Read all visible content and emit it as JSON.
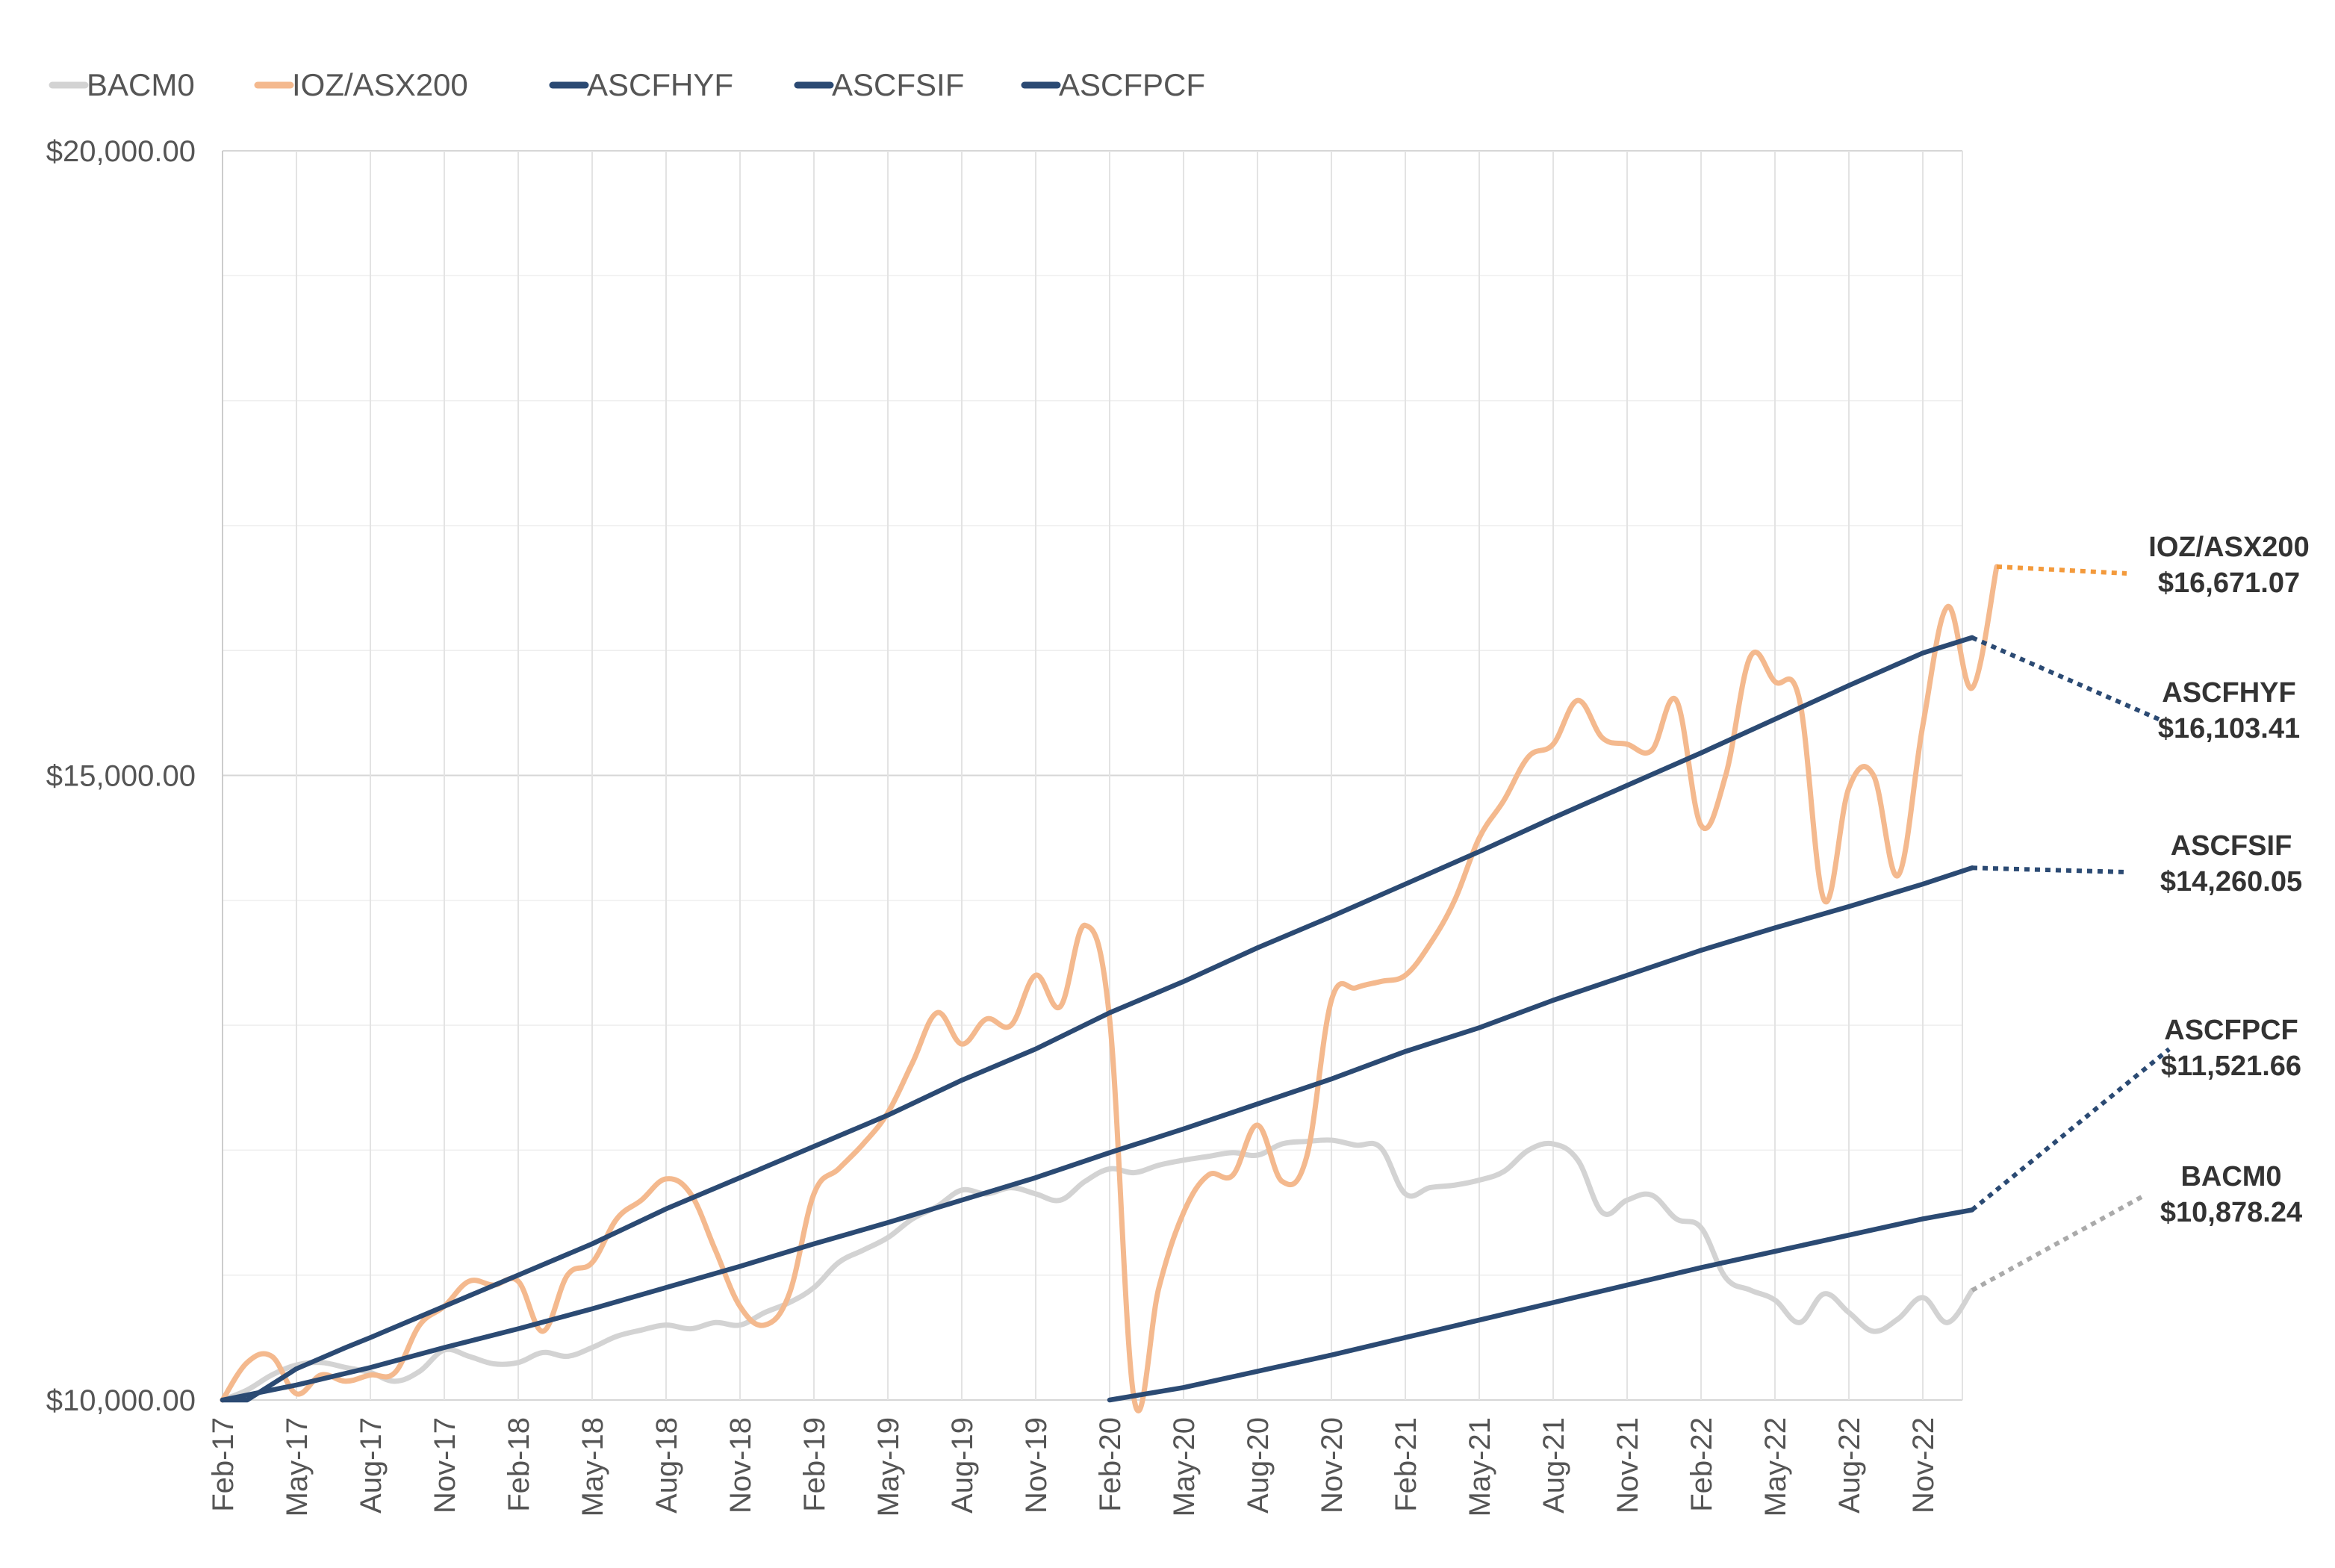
{
  "chart_data": {
    "type": "line",
    "title": "",
    "xlabel": "",
    "ylabel": "",
    "ylim": [
      10000,
      20000
    ],
    "yticks": [
      "$10,000.00",
      "$15,000.00",
      "$20,000.00"
    ],
    "ytick_values": [
      10000,
      15000,
      20000
    ],
    "grid": true,
    "legend_position": "top-left",
    "x_tick_labels": [
      "Feb-17",
      "May-17",
      "Aug-17",
      "Nov-17",
      "Feb-18",
      "May-18",
      "Aug-18",
      "Nov-18",
      "Feb-19",
      "May-19",
      "Aug-19",
      "Nov-19",
      "Feb-20",
      "May-20",
      "Aug-20",
      "Nov-20",
      "Feb-21",
      "May-21",
      "Aug-21",
      "Nov-21",
      "Feb-22",
      "May-22",
      "Aug-22",
      "Nov-22"
    ],
    "series": [
      {
        "name": "BACM0",
        "color": "#d3d3d3",
        "end_label": "BACM0",
        "end_value": "$10,878.24",
        "end_color": "#aaaaaa",
        "points": [
          [
            "Feb-17",
            10000
          ],
          [
            "Mar-17",
            10080
          ],
          [
            "Apr-17",
            10200
          ],
          [
            "May-17",
            10280
          ],
          [
            "Jun-17",
            10300
          ],
          [
            "Jul-17",
            10260
          ],
          [
            "Aug-17",
            10220
          ],
          [
            "Sep-17",
            10150
          ],
          [
            "Oct-17",
            10230
          ],
          [
            "Nov-17",
            10400
          ],
          [
            "Dec-17",
            10350
          ],
          [
            "Jan-18",
            10290
          ],
          [
            "Feb-18",
            10300
          ],
          [
            "Mar-18",
            10380
          ],
          [
            "Apr-18",
            10350
          ],
          [
            "May-18",
            10420
          ],
          [
            "Jun-18",
            10510
          ],
          [
            "Jul-18",
            10560
          ],
          [
            "Aug-18",
            10600
          ],
          [
            "Sep-18",
            10570
          ],
          [
            "Oct-18",
            10620
          ],
          [
            "Nov-18",
            10600
          ],
          [
            "Dec-18",
            10700
          ],
          [
            "Jan-19",
            10780
          ],
          [
            "Feb-19",
            10900
          ],
          [
            "Mar-19",
            11100
          ],
          [
            "Apr-19",
            11200
          ],
          [
            "May-19",
            11300
          ],
          [
            "Jun-19",
            11450
          ],
          [
            "Jul-19",
            11550
          ],
          [
            "Aug-19",
            11680
          ],
          [
            "Sep-19",
            11650
          ],
          [
            "Oct-19",
            11700
          ],
          [
            "Nov-19",
            11650
          ],
          [
            "Dec-19",
            11600
          ],
          [
            "Jan-20",
            11750
          ],
          [
            "Feb-20",
            11850
          ],
          [
            "Mar-20",
            11820
          ],
          [
            "Apr-20",
            11880
          ],
          [
            "May-20",
            11920
          ],
          [
            "Jun-20",
            11950
          ],
          [
            "Jul-20",
            11980
          ],
          [
            "Aug-20",
            11960
          ],
          [
            "Sep-20",
            12050
          ],
          [
            "Oct-20",
            12070
          ],
          [
            "Nov-20",
            12080
          ],
          [
            "Dec-20",
            12040
          ],
          [
            "Jan-21",
            12020
          ],
          [
            "Feb-21",
            11650
          ],
          [
            "Mar-21",
            11700
          ],
          [
            "Apr-21",
            11720
          ],
          [
            "May-21",
            11760
          ],
          [
            "Jun-21",
            11830
          ],
          [
            "Jul-21",
            12000
          ],
          [
            "Aug-21",
            12050
          ],
          [
            "Sep-21",
            11920
          ],
          [
            "Oct-21",
            11500
          ],
          [
            "Nov-21",
            11600
          ],
          [
            "Dec-21",
            11640
          ],
          [
            "Jan-22",
            11450
          ],
          [
            "Feb-22",
            11380
          ],
          [
            "Mar-22",
            10980
          ],
          [
            "Apr-22",
            10880
          ],
          [
            "May-22",
            10800
          ],
          [
            "Jun-22",
            10620
          ],
          [
            "Jul-22",
            10850
          ],
          [
            "Aug-22",
            10700
          ],
          [
            "Sep-22",
            10550
          ],
          [
            "Oct-22",
            10650
          ],
          [
            "Nov-22",
            10820
          ],
          [
            "Dec-22",
            10620
          ],
          [
            "Jan-23",
            10878.24
          ]
        ]
      },
      {
        "name": "IOZ/ASX200",
        "color": "#f4b98e",
        "end_label": "IOZ/ASX200",
        "end_value": "$16,671.07",
        "end_color": "#f39a3c",
        "points": [
          [
            "Feb-17",
            10000
          ],
          [
            "Mar-17",
            10300
          ],
          [
            "Apr-17",
            10350
          ],
          [
            "May-17",
            10050
          ],
          [
            "Jun-17",
            10200
          ],
          [
            "Jul-17",
            10150
          ],
          [
            "Aug-17",
            10200
          ],
          [
            "Sep-17",
            10220
          ],
          [
            "Oct-17",
            10600
          ],
          [
            "Nov-17",
            10750
          ],
          [
            "Dec-17",
            10950
          ],
          [
            "Jan-18",
            10920
          ],
          [
            "Feb-18",
            10950
          ],
          [
            "Mar-18",
            10550
          ],
          [
            "Apr-18",
            11000
          ],
          [
            "May-18",
            11100
          ],
          [
            "Jun-18",
            11450
          ],
          [
            "Jul-18",
            11600
          ],
          [
            "Aug-18",
            11770
          ],
          [
            "Sep-18",
            11650
          ],
          [
            "Oct-18",
            11200
          ],
          [
            "Nov-18",
            10750
          ],
          [
            "Dec-18",
            10600
          ],
          [
            "Jan-19",
            10850
          ],
          [
            "Feb-19",
            11650
          ],
          [
            "Mar-19",
            11850
          ],
          [
            "Apr-19",
            12050
          ],
          [
            "May-19",
            12300
          ],
          [
            "Jun-19",
            12700
          ],
          [
            "Jul-19",
            13100
          ],
          [
            "Aug-19",
            12850
          ],
          [
            "Sep-19",
            13050
          ],
          [
            "Oct-19",
            13000
          ],
          [
            "Nov-19",
            13400
          ],
          [
            "Dec-19",
            13150
          ],
          [
            "Jan-20",
            13800
          ],
          [
            "Feb-20",
            13050
          ],
          [
            "Mar-20",
            10000
          ],
          [
            "Apr-20",
            10900
          ],
          [
            "May-20",
            11500
          ],
          [
            "Jun-20",
            11800
          ],
          [
            "Jul-20",
            11800
          ],
          [
            "Aug-20",
            12200
          ],
          [
            "Sep-20",
            11750
          ],
          [
            "Oct-20",
            11950
          ],
          [
            "Nov-20",
            13200
          ],
          [
            "Dec-20",
            13300
          ],
          [
            "Jan-21",
            13350
          ],
          [
            "Feb-21",
            13400
          ],
          [
            "Mar-21",
            13650
          ],
          [
            "Apr-21",
            14000
          ],
          [
            "May-21",
            14500
          ],
          [
            "Jun-21",
            14800
          ],
          [
            "Jul-21",
            15150
          ],
          [
            "Aug-21",
            15250
          ],
          [
            "Sep-21",
            15600
          ],
          [
            "Oct-21",
            15300
          ],
          [
            "Nov-21",
            15250
          ],
          [
            "Dec-21",
            15200
          ],
          [
            "Jan-22",
            15600
          ],
          [
            "Feb-22",
            14600
          ],
          [
            "Mar-22",
            15000
          ],
          [
            "Apr-22",
            15950
          ],
          [
            "May-22",
            15750
          ],
          [
            "Jun-22",
            15600
          ],
          [
            "Jul-22",
            14000
          ],
          [
            "Aug-22",
            14900
          ],
          [
            "Sep-22",
            15000
          ],
          [
            "Oct-22",
            14200
          ],
          [
            "Nov-22",
            15400
          ],
          [
            "Dec-22",
            16350
          ],
          [
            "Jan-23",
            15700
          ],
          [
            "Feb-23",
            16671.07
          ]
        ]
      },
      {
        "name": "ASCFHYF",
        "color": "#2b4a73",
        "end_label": "ASCFHYF",
        "end_value": "$16,103.41",
        "end_color": "#2b4a73",
        "points": [
          [
            "Feb-17",
            10000
          ],
          [
            "Mar-17",
            10000
          ],
          [
            "May-17",
            10250
          ],
          [
            "Jul-17",
            10420
          ],
          [
            "Aug-17",
            10500
          ],
          [
            "Nov-17",
            10750
          ],
          [
            "Feb-18",
            11000
          ],
          [
            "May-18",
            11250
          ],
          [
            "Aug-18",
            11530
          ],
          [
            "Nov-18",
            11780
          ],
          [
            "Feb-19",
            12030
          ],
          [
            "May-19",
            12280
          ],
          [
            "Aug-19",
            12560
          ],
          [
            "Nov-19",
            12810
          ],
          [
            "Feb-20",
            13100
          ],
          [
            "May-20",
            13350
          ],
          [
            "Aug-20",
            13620
          ],
          [
            "Nov-20",
            13870
          ],
          [
            "Feb-21",
            14130
          ],
          [
            "May-21",
            14390
          ],
          [
            "Aug-21",
            14660
          ],
          [
            "Nov-21",
            14920
          ],
          [
            "Feb-22",
            15180
          ],
          [
            "May-22",
            15450
          ],
          [
            "Aug-22",
            15720
          ],
          [
            "Nov-22",
            15980
          ],
          [
            "Jan-23",
            16103.41
          ]
        ]
      },
      {
        "name": "ASCFSIF",
        "color": "#2b4a73",
        "end_label": "ASCFSIF",
        "end_value": "$14,260.05",
        "end_color": "#2b4a73",
        "points": [
          [
            "Feb-17",
            10000
          ],
          [
            "May-17",
            10120
          ],
          [
            "Aug-17",
            10260
          ],
          [
            "Nov-17",
            10420
          ],
          [
            "Feb-18",
            10570
          ],
          [
            "May-18",
            10730
          ],
          [
            "Aug-18",
            10900
          ],
          [
            "Nov-18",
            11070
          ],
          [
            "Feb-19",
            11250
          ],
          [
            "May-19",
            11420
          ],
          [
            "Aug-19",
            11600
          ],
          [
            "Nov-19",
            11780
          ],
          [
            "Feb-20",
            11980
          ],
          [
            "May-20",
            12170
          ],
          [
            "Aug-20",
            12370
          ],
          [
            "Nov-20",
            12570
          ],
          [
            "Feb-21",
            12790
          ],
          [
            "May-21",
            12980
          ],
          [
            "Aug-21",
            13200
          ],
          [
            "Nov-21",
            13400
          ],
          [
            "Feb-22",
            13600
          ],
          [
            "May-22",
            13780
          ],
          [
            "Aug-22",
            13950
          ],
          [
            "Nov-22",
            14130
          ],
          [
            "Jan-23",
            14260.05
          ]
        ]
      },
      {
        "name": "ASCFPCF",
        "color": "#2b4a73",
        "end_label": "ASCFPCF",
        "end_value": "$11,521.66",
        "end_color": "#2b4a73",
        "points": [
          [
            "Feb-20",
            10000
          ],
          [
            "May-20",
            10100
          ],
          [
            "Aug-20",
            10230
          ],
          [
            "Nov-20",
            10360
          ],
          [
            "Feb-21",
            10500
          ],
          [
            "May-21",
            10640
          ],
          [
            "Aug-21",
            10780
          ],
          [
            "Nov-21",
            10920
          ],
          [
            "Feb-22",
            11060
          ],
          [
            "May-22",
            11190
          ],
          [
            "Aug-22",
            11320
          ],
          [
            "Nov-22",
            11450
          ],
          [
            "Jan-23",
            11521.66
          ]
        ]
      }
    ]
  }
}
